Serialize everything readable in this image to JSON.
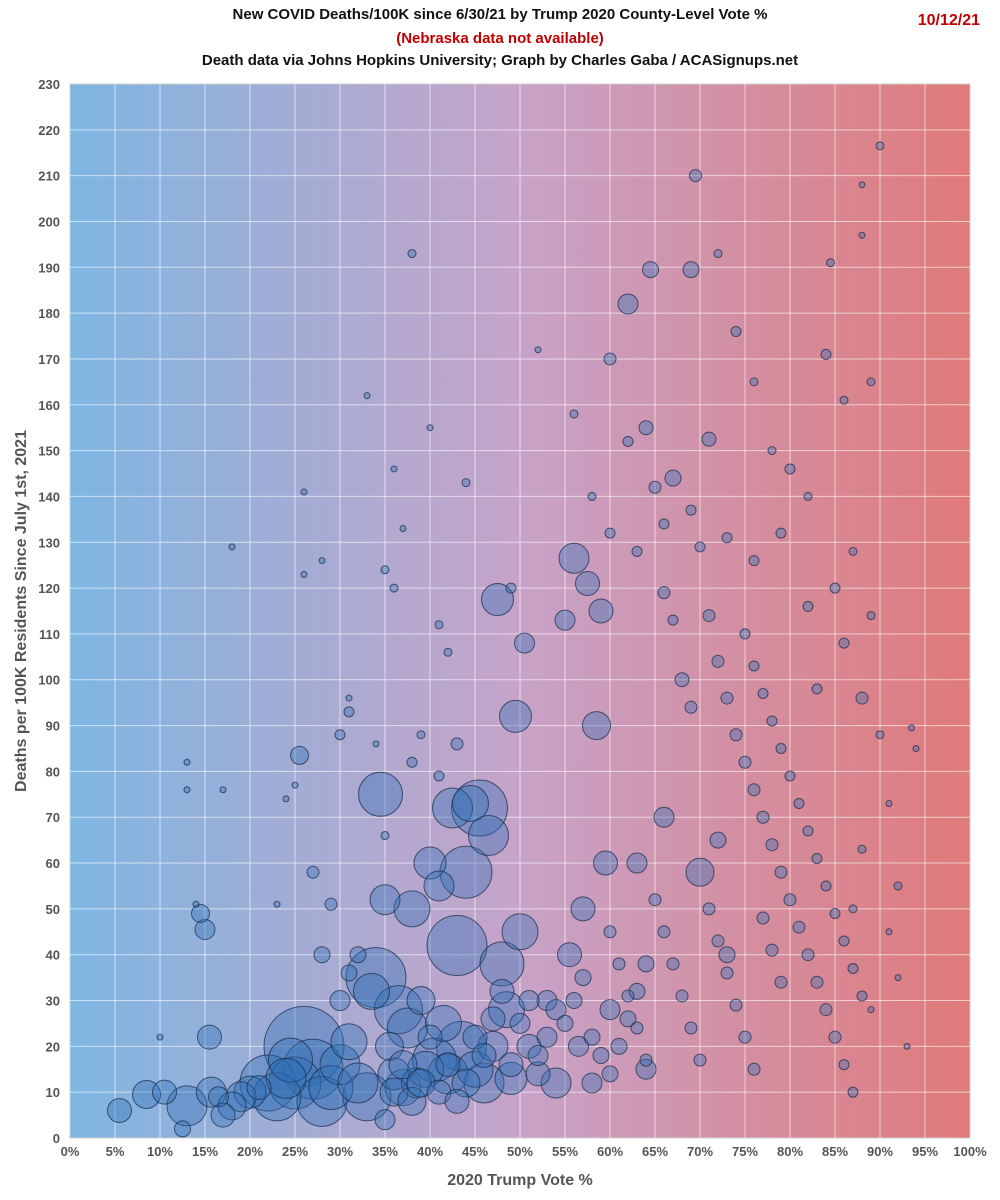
{
  "header": {
    "title": "New COVID Deaths/100K since 6/30/21 by Trump 2020 County-Level Vote %",
    "subtitle_note": "(Nebraska data not available)",
    "credit": "Death data via Johns Hopkins University; Graph by Charles Gaba / ACASignups.net",
    "date": "10/12/21"
  },
  "chart_data": {
    "type": "scatter",
    "title": "New COVID Deaths/100K since 6/30/21 by Trump 2020 County-Level Vote %",
    "xlabel": "2020 Trump Vote %",
    "ylabel": "Deaths per 100K Residents Since July 1st, 2021",
    "xlim": [
      0,
      100
    ],
    "ylim": [
      0,
      230
    ],
    "x_ticks": [
      "0%",
      "5%",
      "10%",
      "15%",
      "20%",
      "25%",
      "30%",
      "35%",
      "40%",
      "45%",
      "50%",
      "55%",
      "60%",
      "65%",
      "70%",
      "75%",
      "80%",
      "85%",
      "90%",
      "95%",
      "100%"
    ],
    "y_ticks": [
      "0",
      "10",
      "20",
      "30",
      "40",
      "50",
      "60",
      "70",
      "80",
      "90",
      "100",
      "110",
      "120",
      "130",
      "140",
      "150",
      "160",
      "170",
      "180",
      "190",
      "200",
      "210",
      "220",
      "230"
    ],
    "grid": true,
    "legend": "none",
    "bubble_size": "county population",
    "background_gradient": [
      "#7eb6e2",
      "#e07a7a"
    ],
    "bubble_color": "#2f6fb5",
    "bubble_stroke": "#1b2f4d",
    "points": [
      [
        5.5,
        6,
        12
      ],
      [
        8.5,
        9.5,
        14
      ],
      [
        10.5,
        10,
        12
      ],
      [
        13,
        7,
        20
      ],
      [
        12.5,
        2,
        8
      ],
      [
        14.5,
        49,
        9
      ],
      [
        15,
        45.5,
        10
      ],
      [
        15.5,
        22,
        12
      ],
      [
        15.7,
        10,
        15
      ],
      [
        16.5,
        9,
        10
      ],
      [
        17,
        5,
        12
      ],
      [
        18,
        7,
        14
      ],
      [
        19,
        9,
        15
      ],
      [
        20,
        10,
        16
      ],
      [
        21,
        11,
        12
      ],
      [
        22,
        12,
        28
      ],
      [
        23,
        9,
        24
      ],
      [
        24,
        13,
        20
      ],
      [
        24.5,
        17,
        22
      ],
      [
        25,
        12,
        26
      ],
      [
        26,
        20,
        40
      ],
      [
        25.5,
        83.5,
        9
      ],
      [
        27,
        15,
        30
      ],
      [
        28,
        8,
        25
      ],
      [
        29,
        11,
        22
      ],
      [
        30,
        16,
        20
      ],
      [
        31,
        21,
        18
      ],
      [
        32,
        12,
        20
      ],
      [
        33,
        9,
        24
      ],
      [
        33.5,
        32,
        18
      ],
      [
        34,
        35,
        30
      ],
      [
        34.5,
        75,
        22
      ],
      [
        35,
        52,
        15
      ],
      [
        35.5,
        20,
        14
      ],
      [
        36,
        14,
        16
      ],
      [
        36.5,
        28,
        24
      ],
      [
        37,
        11,
        18
      ],
      [
        37.5,
        24,
        20
      ],
      [
        38,
        50,
        18
      ],
      [
        38.5,
        12,
        15
      ],
      [
        39,
        30,
        14
      ],
      [
        39.5,
        15,
        18
      ],
      [
        40,
        60,
        16
      ],
      [
        40.5,
        17,
        22
      ],
      [
        41,
        55,
        15
      ],
      [
        41.5,
        25,
        18
      ],
      [
        42,
        14,
        20
      ],
      [
        42.5,
        72,
        20
      ],
      [
        43,
        42,
        30
      ],
      [
        43.5,
        20,
        25
      ],
      [
        44,
        58,
        26
      ],
      [
        44.5,
        73,
        18
      ],
      [
        45,
        15,
        18
      ],
      [
        45.5,
        72,
        28
      ],
      [
        46,
        12,
        20
      ],
      [
        46.5,
        66,
        20
      ],
      [
        47,
        20,
        15
      ],
      [
        47.5,
        117.5,
        16
      ],
      [
        48,
        38,
        22
      ],
      [
        48.5,
        28,
        18
      ],
      [
        49,
        13,
        16
      ],
      [
        49.5,
        92,
        16
      ],
      [
        50,
        45,
        18
      ],
      [
        50.5,
        108,
        10
      ],
      [
        51,
        20,
        12
      ],
      [
        52,
        14,
        12
      ],
      [
        53,
        30,
        10
      ],
      [
        54,
        12,
        15
      ],
      [
        55,
        113,
        10
      ],
      [
        55.5,
        40,
        12
      ],
      [
        56,
        126.5,
        15
      ],
      [
        56.5,
        20,
        10
      ],
      [
        57,
        50,
        12
      ],
      [
        57.5,
        121,
        12
      ],
      [
        58,
        12,
        10
      ],
      [
        58.5,
        90,
        14
      ],
      [
        59,
        115,
        12
      ],
      [
        59.5,
        60,
        12
      ],
      [
        60,
        28,
        10
      ],
      [
        62,
        182,
        10
      ],
      [
        63,
        60,
        10
      ],
      [
        64,
        15,
        10
      ],
      [
        64.5,
        189.5,
        8
      ],
      [
        66,
        70,
        10
      ],
      [
        67,
        144,
        8
      ],
      [
        69,
        189.5,
        8
      ],
      [
        70,
        58,
        14
      ],
      [
        71,
        152.5,
        7
      ],
      [
        72,
        65,
        8
      ],
      [
        73,
        40,
        8
      ],
      [
        69.5,
        210,
        6
      ],
      [
        72,
        193,
        4
      ],
      [
        74,
        176,
        5
      ],
      [
        76,
        165,
        4
      ],
      [
        78,
        150,
        4
      ],
      [
        80,
        146,
        5
      ],
      [
        82,
        140,
        4
      ],
      [
        84,
        171,
        5
      ],
      [
        84.5,
        191,
        4
      ],
      [
        86,
        161,
        4
      ],
      [
        88,
        208,
        3
      ],
      [
        89,
        165,
        4
      ],
      [
        90,
        216.5,
        4
      ],
      [
        88,
        197,
        3
      ],
      [
        87,
        128,
        4
      ],
      [
        85,
        120,
        5
      ],
      [
        86,
        108,
        5
      ],
      [
        88,
        96,
        6
      ],
      [
        89,
        114,
        4
      ],
      [
        90,
        88,
        4
      ],
      [
        91,
        73,
        3
      ],
      [
        92,
        55,
        4
      ],
      [
        93,
        20,
        3
      ],
      [
        93.5,
        89.5,
        3
      ],
      [
        94,
        85,
        3
      ],
      [
        92,
        35,
        3
      ],
      [
        91,
        45,
        3
      ],
      [
        89,
        28,
        3
      ],
      [
        88,
        63,
        4
      ],
      [
        87,
        50,
        4
      ],
      [
        60,
        170,
        6
      ],
      [
        62,
        152,
        5
      ],
      [
        64,
        155,
        7
      ],
      [
        65,
        142,
        6
      ],
      [
        66,
        119,
        6
      ],
      [
        67,
        113,
        5
      ],
      [
        68,
        100,
        7
      ],
      [
        69,
        94,
        6
      ],
      [
        70,
        129,
        5
      ],
      [
        71,
        114,
        6
      ],
      [
        72,
        104,
        6
      ],
      [
        73,
        96,
        6
      ],
      [
        74,
        88,
        6
      ],
      [
        75,
        82,
        6
      ],
      [
        76,
        76,
        6
      ],
      [
        77,
        70,
        6
      ],
      [
        78,
        64,
        6
      ],
      [
        79,
        58,
        6
      ],
      [
        80,
        52,
        6
      ],
      [
        81,
        46,
        6
      ],
      [
        82,
        40,
        6
      ],
      [
        83,
        34,
        6
      ],
      [
        84,
        28,
        6
      ],
      [
        85,
        22,
        6
      ],
      [
        86,
        16,
        5
      ],
      [
        87,
        10,
        5
      ],
      [
        75,
        110,
        5
      ],
      [
        76,
        103,
        5
      ],
      [
        77,
        97,
        5
      ],
      [
        78,
        91,
        5
      ],
      [
        79,
        85,
        5
      ],
      [
        80,
        79,
        5
      ],
      [
        81,
        73,
        5
      ],
      [
        82,
        67,
        5
      ],
      [
        83,
        61,
        5
      ],
      [
        84,
        55,
        5
      ],
      [
        85,
        49,
        5
      ],
      [
        86,
        43,
        5
      ],
      [
        87,
        37,
        5
      ],
      [
        88,
        31,
        5
      ],
      [
        60,
        45,
        6
      ],
      [
        61,
        38,
        6
      ],
      [
        62,
        31,
        6
      ],
      [
        63,
        24,
        6
      ],
      [
        64,
        17,
        6
      ],
      [
        65,
        52,
        6
      ],
      [
        66,
        45,
        6
      ],
      [
        67,
        38,
        6
      ],
      [
        68,
        31,
        6
      ],
      [
        69,
        24,
        6
      ],
      [
        70,
        17,
        6
      ],
      [
        71,
        50,
        6
      ],
      [
        72,
        43,
        6
      ],
      [
        73,
        36,
        6
      ],
      [
        74,
        29,
        6
      ],
      [
        75,
        22,
        6
      ],
      [
        76,
        15,
        6
      ],
      [
        77,
        48,
        6
      ],
      [
        78,
        41,
        6
      ],
      [
        79,
        34,
        6
      ],
      [
        55,
        25,
        8
      ],
      [
        56,
        30,
        8
      ],
      [
        57,
        35,
        8
      ],
      [
        58,
        22,
        8
      ],
      [
        59,
        18,
        8
      ],
      [
        60,
        14,
        8
      ],
      [
        61,
        20,
        8
      ],
      [
        62,
        26,
        8
      ],
      [
        63,
        32,
        8
      ],
      [
        64,
        38,
        8
      ],
      [
        50,
        25,
        10
      ],
      [
        51,
        30,
        10
      ],
      [
        52,
        18,
        10
      ],
      [
        53,
        22,
        10
      ],
      [
        54,
        28,
        10
      ],
      [
        45,
        22,
        12
      ],
      [
        46,
        18,
        12
      ],
      [
        47,
        26,
        12
      ],
      [
        48,
        32,
        12
      ],
      [
        49,
        16,
        12
      ],
      [
        40,
        22,
        12
      ],
      [
        41,
        10,
        12
      ],
      [
        42,
        16,
        12
      ],
      [
        43,
        8,
        12
      ],
      [
        44,
        12,
        14
      ],
      [
        36,
        10,
        14
      ],
      [
        37,
        16,
        14
      ],
      [
        38,
        8,
        14
      ],
      [
        39,
        12,
        14
      ],
      [
        35,
        4,
        10
      ],
      [
        30,
        30,
        10
      ],
      [
        31,
        36,
        8
      ],
      [
        32,
        40,
        8
      ],
      [
        29,
        51,
        6
      ],
      [
        28,
        40,
        8
      ],
      [
        27,
        58,
        6
      ],
      [
        30,
        88,
        5
      ],
      [
        31,
        93,
        5
      ],
      [
        33,
        162,
        3
      ],
      [
        35,
        124,
        4
      ],
      [
        36,
        120,
        4
      ],
      [
        37,
        133,
        3
      ],
      [
        38,
        193,
        4
      ],
      [
        40,
        155,
        3
      ],
      [
        41,
        112,
        4
      ],
      [
        42,
        106,
        4
      ],
      [
        44,
        143,
        4
      ],
      [
        49,
        120,
        5
      ],
      [
        52,
        172,
        3
      ],
      [
        56,
        158,
        4
      ],
      [
        58,
        140,
        4
      ],
      [
        60,
        132,
        5
      ],
      [
        63,
        128,
        5
      ],
      [
        66,
        134,
        5
      ],
      [
        69,
        137,
        5
      ],
      [
        73,
        131,
        5
      ],
      [
        76,
        126,
        5
      ],
      [
        79,
        132,
        5
      ],
      [
        82,
        116,
        5
      ],
      [
        83,
        98,
        5
      ],
      [
        26,
        141,
        3
      ],
      [
        26,
        123,
        3
      ],
      [
        28,
        126,
        3
      ],
      [
        18,
        129,
        3
      ],
      [
        13,
        82,
        3
      ],
      [
        13,
        76,
        3
      ],
      [
        17,
        76,
        3
      ],
      [
        14,
        51,
        3
      ],
      [
        10,
        22,
        3
      ],
      [
        23,
        51,
        3
      ],
      [
        25,
        77,
        3
      ],
      [
        24,
        74,
        3
      ],
      [
        31,
        96,
        3
      ],
      [
        34,
        86,
        3
      ],
      [
        35,
        66,
        4
      ],
      [
        36,
        146,
        3
      ],
      [
        38,
        82,
        5
      ],
      [
        39,
        88,
        4
      ],
      [
        41,
        79,
        5
      ],
      [
        43,
        86,
        6
      ]
    ]
  }
}
